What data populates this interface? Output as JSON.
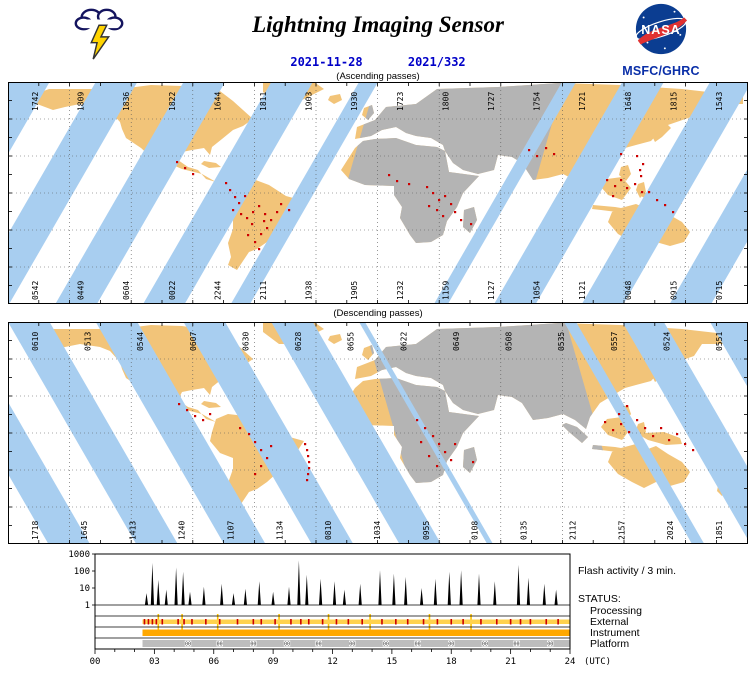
{
  "header": {
    "title": "Lightning Imaging Sensor",
    "date": "2021-11-28",
    "day_of_year": "2021/332",
    "organization": "MSFC/GHRC",
    "nasa_wordmark": "NASA"
  },
  "colors": {
    "land": "#F2C479",
    "swath_blue": "#A8CEF0",
    "night_gray": "#B4B4B4",
    "flash_red": "#CC0000",
    "text_blue": "#0000C8",
    "nasa_blue": "#0B3D91",
    "bar_yellow": "#FFD24D",
    "bar_orange": "#FFA800",
    "bar_spike": "#FFC400",
    "bar_gray": "#BDBDBD"
  },
  "maps": {
    "ascending": {
      "label": "(Ascending passes)",
      "top_times": [
        "1742",
        "1809",
        "1836",
        "1822",
        "1644",
        "1811",
        "1903",
        "1930",
        "1723",
        "1800",
        "1727",
        "1754",
        "1721",
        "1648",
        "1815",
        "1543"
      ],
      "bottom_times": [
        "0542",
        "0449",
        "0604",
        "0022",
        "2244",
        "2111",
        "1938",
        "1905",
        "1232",
        "1159",
        "1127",
        "1054",
        "1121",
        "0048",
        "0915",
        "0715"
      ],
      "flash_dots": [
        [
          217,
          100
        ],
        [
          221,
          107
        ],
        [
          226,
          114
        ],
        [
          230,
          120
        ],
        [
          224,
          127
        ],
        [
          232,
          131
        ],
        [
          238,
          135
        ],
        [
          244,
          129
        ],
        [
          250,
          123
        ],
        [
          256,
          131
        ],
        [
          262,
          137
        ],
        [
          268,
          129
        ],
        [
          258,
          145
        ],
        [
          252,
          151
        ],
        [
          246,
          159
        ],
        [
          250,
          166
        ],
        [
          272,
          121
        ],
        [
          280,
          127
        ],
        [
          236,
          113
        ],
        [
          243,
          141
        ],
        [
          239,
          152
        ],
        [
          255,
          138
        ],
        [
          380,
          92
        ],
        [
          388,
          98
        ],
        [
          400,
          101
        ],
        [
          418,
          104
        ],
        [
          424,
          110
        ],
        [
          430,
          117
        ],
        [
          436,
          113
        ],
        [
          442,
          121
        ],
        [
          428,
          127
        ],
        [
          434,
          133
        ],
        [
          446,
          129
        ],
        [
          452,
          137
        ],
        [
          420,
          123
        ],
        [
          462,
          141
        ],
        [
          520,
          67
        ],
        [
          528,
          73
        ],
        [
          537,
          65
        ],
        [
          545,
          71
        ],
        [
          598,
          97
        ],
        [
          606,
          103
        ],
        [
          612,
          97
        ],
        [
          618,
          105
        ],
        [
          604,
          113
        ],
        [
          626,
          101
        ],
        [
          632,
          93
        ],
        [
          640,
          109
        ],
        [
          648,
          117
        ],
        [
          628,
          73
        ],
        [
          634,
          81
        ],
        [
          631,
          87
        ],
        [
          633,
          109
        ],
        [
          656,
          122
        ],
        [
          664,
          129
        ],
        [
          612,
          71
        ],
        [
          168,
          79
        ],
        [
          176,
          85
        ],
        [
          184,
          91
        ]
      ]
    },
    "descending": {
      "label": "(Descending passes)",
      "top_times": [
        "0610",
        "0513",
        "0544",
        "0607",
        "0630",
        "0628",
        "0655",
        "0622",
        "0649",
        "0508",
        "0535",
        "0557",
        "0524",
        "0551"
      ],
      "bottom_times": [
        "1718",
        "1645",
        "1413",
        "1240",
        "1107",
        "1134",
        "0810",
        "1034",
        "0955",
        "0108",
        "0135",
        "2112",
        "2157",
        "2024",
        "1851"
      ],
      "flash_dots": [
        [
          170,
          81
        ],
        [
          178,
          87
        ],
        [
          186,
          93
        ],
        [
          194,
          97
        ],
        [
          201,
          91
        ],
        [
          296,
          121
        ],
        [
          298,
          127
        ],
        [
          299,
          133
        ],
        [
          300,
          139
        ],
        [
          300,
          145
        ],
        [
          299,
          151
        ],
        [
          298,
          157
        ],
        [
          240,
          111
        ],
        [
          246,
          119
        ],
        [
          252,
          127
        ],
        [
          258,
          135
        ],
        [
          252,
          143
        ],
        [
          246,
          151
        ],
        [
          262,
          123
        ],
        [
          231,
          105
        ],
        [
          408,
          97
        ],
        [
          416,
          105
        ],
        [
          424,
          113
        ],
        [
          430,
          121
        ],
        [
          436,
          129
        ],
        [
          442,
          137
        ],
        [
          428,
          143
        ],
        [
          420,
          133
        ],
        [
          412,
          119
        ],
        [
          446,
          121
        ],
        [
          464,
          139
        ],
        [
          596,
          99
        ],
        [
          604,
          107
        ],
        [
          612,
          101
        ],
        [
          620,
          109
        ],
        [
          628,
          97
        ],
        [
          636,
          105
        ],
        [
          644,
          113
        ],
        [
          652,
          105
        ],
        [
          660,
          117
        ],
        [
          668,
          111
        ],
        [
          618,
          83
        ],
        [
          610,
          91
        ],
        [
          676,
          121
        ],
        [
          684,
          127
        ]
      ]
    }
  },
  "chart_data": {
    "type": "line",
    "title": "Flash activity / 3 min.",
    "status_label": "STATUS:",
    "x_ticks": [
      "00",
      "03",
      "06",
      "09",
      "12",
      "15",
      "18",
      "21",
      "24"
    ],
    "x_unit": "(UTC)",
    "xlim": [
      0,
      24
    ],
    "ylog": true,
    "ylim": [
      1,
      1000
    ],
    "y_ticks": [
      1000,
      100,
      10,
      1
    ],
    "flash_spikes": [
      [
        2.6,
        5
      ],
      [
        2.9,
        300
      ],
      [
        3.2,
        30
      ],
      [
        3.6,
        8
      ],
      [
        4.1,
        160
      ],
      [
        4.45,
        90
      ],
      [
        4.8,
        6
      ],
      [
        5.5,
        12
      ],
      [
        6.4,
        18
      ],
      [
        7.0,
        5
      ],
      [
        7.6,
        9
      ],
      [
        8.3,
        25
      ],
      [
        9.0,
        6
      ],
      [
        9.8,
        12
      ],
      [
        10.3,
        420
      ],
      [
        10.7,
        60
      ],
      [
        11.4,
        35
      ],
      [
        12.1,
        25
      ],
      [
        12.6,
        8
      ],
      [
        13.4,
        18
      ],
      [
        14.4,
        110
      ],
      [
        15.1,
        70
      ],
      [
        15.7,
        45
      ],
      [
        16.5,
        10
      ],
      [
        17.2,
        35
      ],
      [
        17.9,
        90
      ],
      [
        18.5,
        110
      ],
      [
        19.4,
        70
      ],
      [
        20.2,
        25
      ],
      [
        21.4,
        230
      ],
      [
        21.9,
        40
      ],
      [
        22.7,
        18
      ],
      [
        23.3,
        8
      ]
    ],
    "status": {
      "start": 2.4,
      "end": 24,
      "rows": [
        {
          "name": "Processing",
          "style": "empty"
        },
        {
          "name": "External",
          "style": "bar",
          "red_ticks": [
            2.5,
            2.7,
            2.9,
            3.1,
            3.4,
            4.2,
            4.5,
            4.9,
            5.6,
            6.3,
            7.2,
            8.0,
            8.4,
            9.1,
            9.9,
            10.4,
            10.8,
            11.5,
            12.2,
            12.8,
            13.5,
            14.5,
            15.2,
            15.8,
            16.6,
            17.3,
            18.0,
            18.6,
            19.5,
            20.3,
            21.0,
            21.5,
            22.0,
            22.8,
            23.4
          ],
          "yellow_spikes": [
            3.2,
            4.4,
            6.2,
            9.3,
            11.8,
            13.9,
            16.9,
            19.0
          ]
        },
        {
          "name": "Instrument",
          "style": "bar"
        },
        {
          "name": "Platform",
          "style": "bar",
          "notch_label": "00",
          "notches": [
            4.7,
            6.3,
            8.0,
            9.7,
            11.3,
            13.0,
            14.7,
            16.3,
            18.0,
            19.7,
            21.3,
            23.0
          ]
        }
      ]
    }
  }
}
